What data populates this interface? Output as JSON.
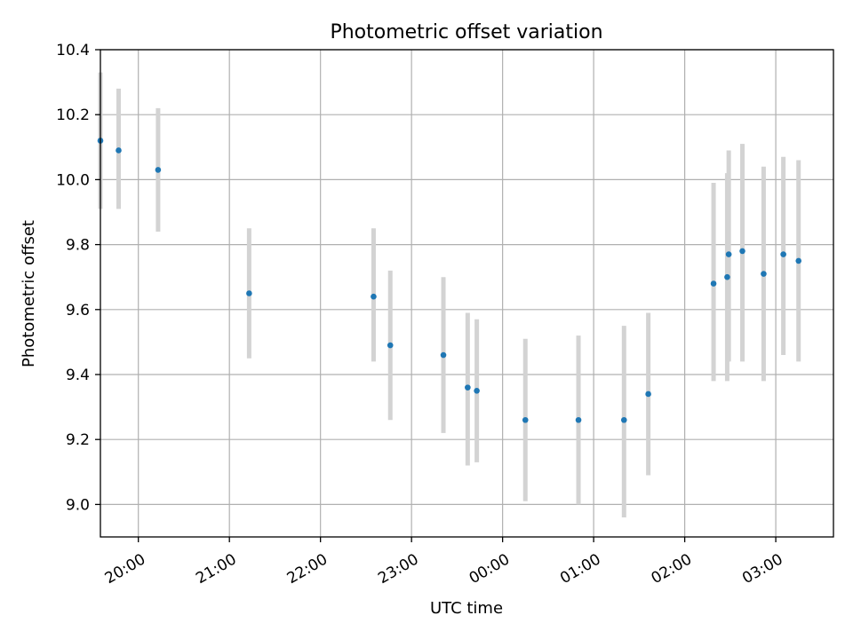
{
  "chart_data": {
    "type": "scatter",
    "title": "Photometric offset variation",
    "xlabel": "UTC time",
    "ylabel": "Photometric offset",
    "grid": true,
    "ylim": [
      8.9,
      10.4
    ],
    "xlim": [
      "19:35",
      "03:38"
    ],
    "x_ticks": [
      "20:00",
      "21:00",
      "22:00",
      "23:00",
      "00:00",
      "01:00",
      "02:00",
      "03:00"
    ],
    "y_ticks": [
      "9.0",
      "9.2",
      "9.4",
      "9.6",
      "9.8",
      "10.0",
      "10.2",
      "10.4"
    ],
    "colors": {
      "points": "#1f77b4",
      "errorbars": "#d3d3d3",
      "grid": "#b0b0b0"
    },
    "points": [
      {
        "time": "19:35",
        "value": 10.12,
        "lower": 9.91,
        "upper": 10.33
      },
      {
        "time": "19:47",
        "value": 10.09,
        "lower": 9.91,
        "upper": 10.28
      },
      {
        "time": "20:13",
        "value": 10.03,
        "lower": 9.84,
        "upper": 10.22
      },
      {
        "time": "21:13",
        "value": 9.65,
        "lower": 9.45,
        "upper": 9.85
      },
      {
        "time": "22:35",
        "value": 9.64,
        "lower": 9.44,
        "upper": 9.85
      },
      {
        "time": "22:46",
        "value": 9.49,
        "lower": 9.26,
        "upper": 9.72
      },
      {
        "time": "23:21",
        "value": 9.46,
        "lower": 9.22,
        "upper": 9.7
      },
      {
        "time": "23:37",
        "value": 9.36,
        "lower": 9.12,
        "upper": 9.59
      },
      {
        "time": "23:43",
        "value": 9.35,
        "lower": 9.13,
        "upper": 9.57
      },
      {
        "time": "00:15",
        "value": 9.26,
        "lower": 9.01,
        "upper": 9.51
      },
      {
        "time": "00:50",
        "value": 9.26,
        "lower": 9.0,
        "upper": 9.52
      },
      {
        "time": "01:20",
        "value": 9.26,
        "lower": 8.96,
        "upper": 9.55
      },
      {
        "time": "01:36",
        "value": 9.34,
        "lower": 9.09,
        "upper": 9.59
      },
      {
        "time": "02:19",
        "value": 9.68,
        "lower": 9.38,
        "upper": 9.99
      },
      {
        "time": "02:28",
        "value": 9.7,
        "lower": 9.38,
        "upper": 10.02
      },
      {
        "time": "02:29",
        "value": 9.77,
        "lower": 9.44,
        "upper": 10.09
      },
      {
        "time": "02:38",
        "value": 9.78,
        "lower": 9.44,
        "upper": 10.11
      },
      {
        "time": "02:52",
        "value": 9.71,
        "lower": 9.38,
        "upper": 10.04
      },
      {
        "time": "03:05",
        "value": 9.77,
        "lower": 9.46,
        "upper": 10.07
      },
      {
        "time": "03:15",
        "value": 9.75,
        "lower": 9.44,
        "upper": 10.06
      }
    ]
  }
}
